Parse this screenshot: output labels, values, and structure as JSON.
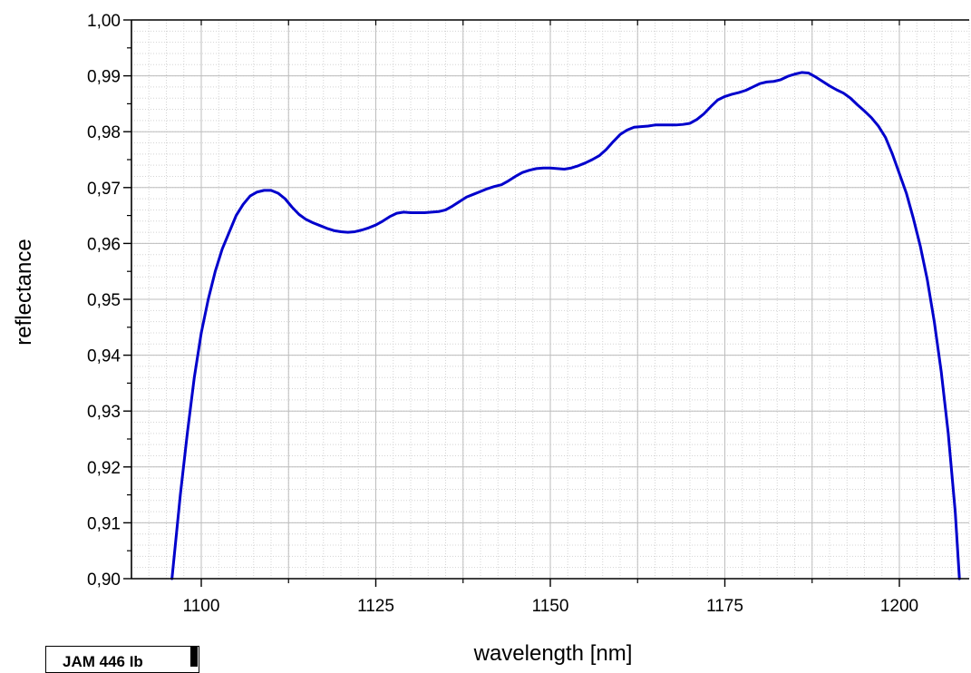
{
  "chart_data": {
    "type": "line",
    "title": "",
    "xlabel": "wavelength [nm]",
    "ylabel": "reflectance",
    "xlim": [
      1090,
      1210
    ],
    "ylim": [
      0.9,
      1.0
    ],
    "x_ticks": [
      1100,
      1125,
      1150,
      1175,
      1200
    ],
    "x_tick_labels": [
      "1100",
      "1125",
      "1150",
      "1175",
      "1200"
    ],
    "y_ticks": [
      0.9,
      0.91,
      0.92,
      0.93,
      0.94,
      0.95,
      0.96,
      0.97,
      0.98,
      0.99,
      1.0
    ],
    "y_tick_labels": [
      "0,90",
      "0,91",
      "0,92",
      "0,93",
      "0,94",
      "0,95",
      "0,96",
      "0,97",
      "0,98",
      "0,99",
      "1,00"
    ],
    "grid": true,
    "legend": "none",
    "line_color": "#0000cc",
    "series": [
      {
        "x": [
          1095.8,
          1097,
          1098,
          1099,
          1100,
          1101,
          1102,
          1103,
          1104,
          1105,
          1106,
          1107,
          1108,
          1109,
          1110,
          1111,
          1112,
          1113,
          1114,
          1115,
          1116,
          1117,
          1118,
          1119,
          1120,
          1121,
          1122,
          1123,
          1124,
          1125,
          1126,
          1127,
          1128,
          1129,
          1130,
          1131,
          1132,
          1133,
          1134,
          1135,
          1136,
          1137,
          1138,
          1139,
          1140,
          1141,
          1142,
          1143,
          1144,
          1145,
          1146,
          1147,
          1148,
          1149,
          1150,
          1151,
          1152,
          1153,
          1154,
          1155,
          1156,
          1157,
          1158,
          1159,
          1160,
          1161,
          1162,
          1163,
          1164,
          1165,
          1166,
          1167,
          1168,
          1169,
          1170,
          1171,
          1172,
          1173,
          1174,
          1175,
          1176,
          1177,
          1178,
          1179,
          1180,
          1181,
          1182,
          1183,
          1184,
          1185,
          1186,
          1187,
          1188,
          1189,
          1190,
          1191,
          1192,
          1193,
          1194,
          1195,
          1196,
          1197,
          1198,
          1199,
          1200,
          1201,
          1202,
          1203,
          1204,
          1205,
          1206,
          1207,
          1208,
          1208.6
        ],
        "y": [
          0.9,
          0.915,
          0.926,
          0.936,
          0.944,
          0.95,
          0.955,
          0.959,
          0.962,
          0.965,
          0.967,
          0.9685,
          0.9692,
          0.9695,
          0.9695,
          0.969,
          0.968,
          0.9665,
          0.9652,
          0.9643,
          0.9637,
          0.9632,
          0.9627,
          0.9623,
          0.9621,
          0.962,
          0.9621,
          0.9624,
          0.9628,
          0.9633,
          0.964,
          0.9648,
          0.9654,
          0.9656,
          0.9655,
          0.9655,
          0.9655,
          0.9656,
          0.9657,
          0.966,
          0.9667,
          0.9675,
          0.9683,
          0.9688,
          0.9693,
          0.9698,
          0.9702,
          0.9705,
          0.9712,
          0.972,
          0.9727,
          0.9731,
          0.9734,
          0.9735,
          0.9735,
          0.9734,
          0.9733,
          0.9735,
          0.9739,
          0.9744,
          0.975,
          0.9757,
          0.9768,
          0.9782,
          0.9795,
          0.9803,
          0.9808,
          0.9809,
          0.981,
          0.9812,
          0.9812,
          0.9812,
          0.9812,
          0.9813,
          0.9815,
          0.9822,
          0.9832,
          0.9845,
          0.9857,
          0.9863,
          0.9867,
          0.987,
          0.9874,
          0.988,
          0.9886,
          0.9889,
          0.989,
          0.9893,
          0.9899,
          0.9903,
          0.9906,
          0.9905,
          0.9898,
          0.989,
          0.9882,
          0.9875,
          0.9869,
          0.986,
          0.9848,
          0.9837,
          0.9825,
          0.981,
          0.979,
          0.976,
          0.9725,
          0.969,
          0.9645,
          0.9595,
          0.9535,
          0.946,
          0.937,
          0.926,
          0.912,
          0.9
        ]
      }
    ]
  },
  "tag": {
    "label": "JAM 446 Ib"
  }
}
